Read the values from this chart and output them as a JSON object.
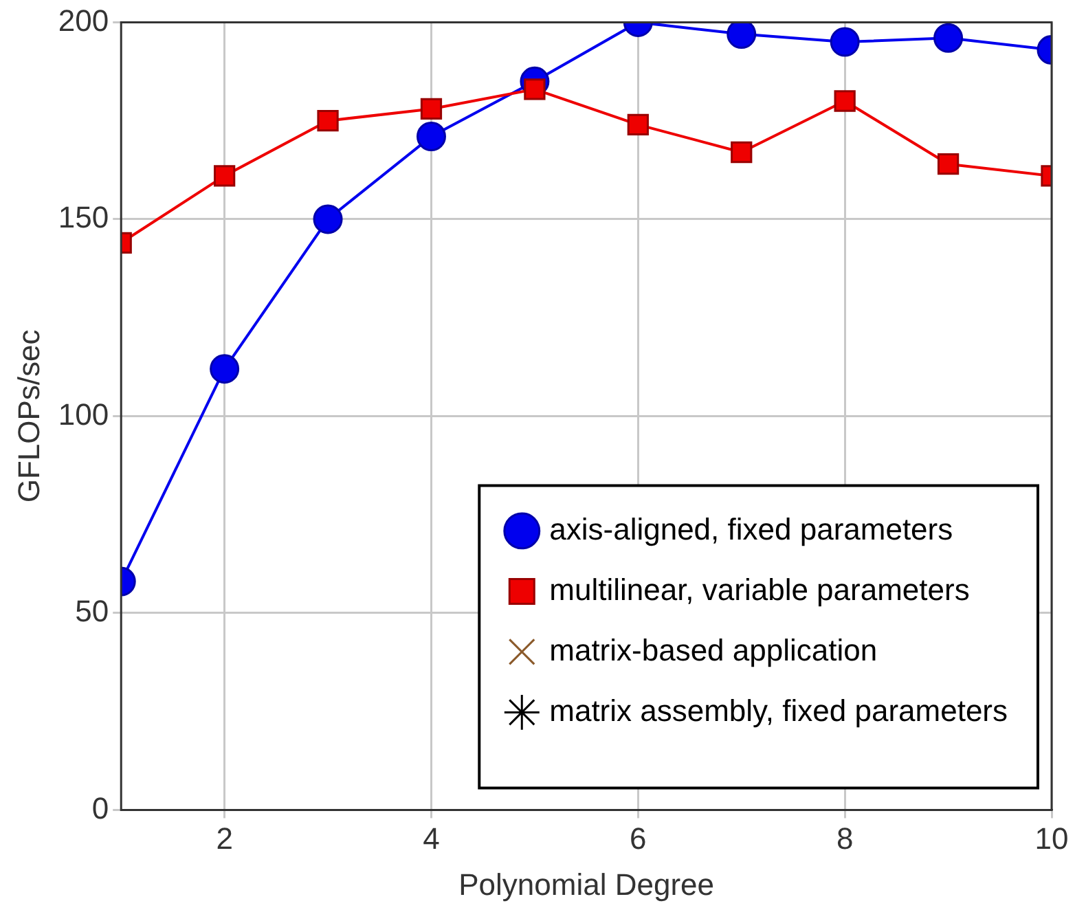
{
  "chart_data": {
    "type": "line",
    "xlabel": "Polynomial Degree",
    "ylabel": "GFLOPs/sec",
    "x": [
      1,
      2,
      3,
      4,
      5,
      6,
      7,
      8,
      9,
      10
    ],
    "series": [
      {
        "name": "axis-aligned, fixed parameters",
        "color": "#0000ee",
        "marker": "circle",
        "values": [
          58,
          112,
          150,
          171,
          185,
          200,
          197,
          195,
          196,
          193
        ]
      },
      {
        "name": "multilinear, variable parameters",
        "color": "#ee0000",
        "marker": "square",
        "values": [
          144,
          161,
          175,
          178,
          183,
          174,
          167,
          180,
          164,
          161
        ]
      },
      {
        "name": "matrix-based application",
        "color": "#8b5a2b",
        "marker": "cross",
        "values": [
          null,
          null,
          null,
          null,
          null,
          null,
          null,
          null,
          null,
          null
        ]
      },
      {
        "name": "matrix assembly, fixed parameters",
        "color": "#000000",
        "marker": "star",
        "values": [
          null,
          null,
          null,
          null,
          null,
          null,
          null,
          null,
          null,
          null
        ]
      }
    ],
    "xlim": [
      1,
      10
    ],
    "xticks": [
      2,
      4,
      6,
      8,
      10
    ],
    "ylim": [
      0,
      200
    ],
    "yticks": [
      0,
      50,
      100,
      150,
      200
    ],
    "grid": true,
    "legend": "bottom right",
    "line_style": "solid"
  }
}
